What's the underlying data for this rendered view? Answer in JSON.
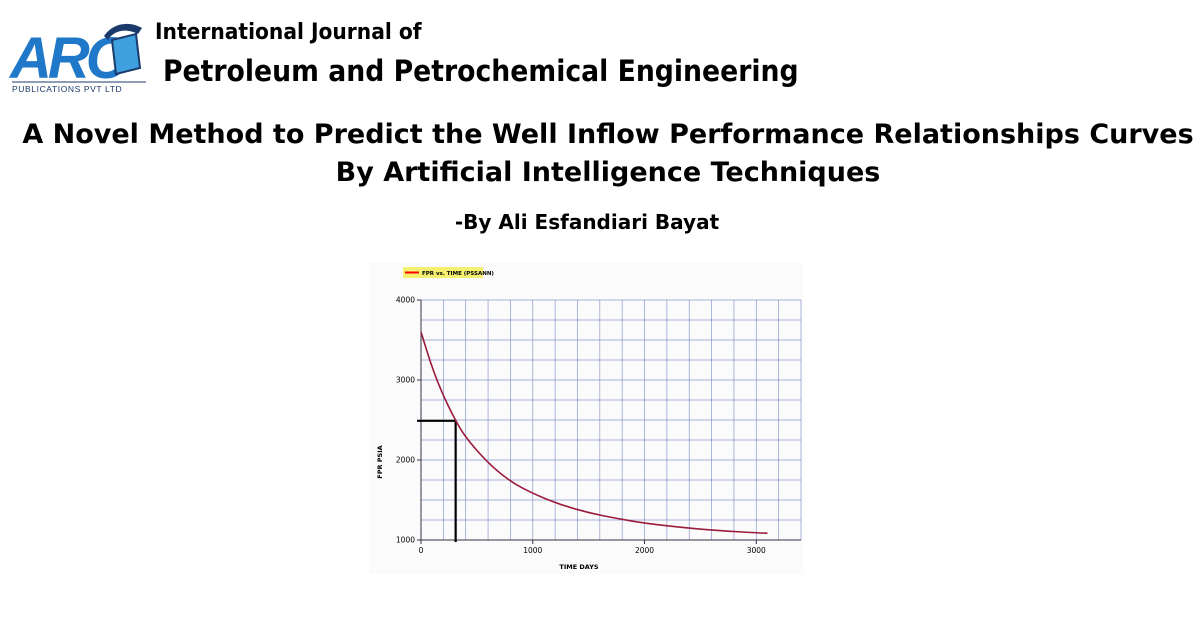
{
  "header": {
    "logo_letters": "ARC",
    "logo_tagline": "PUBLICATIONS PVT LTD",
    "journal_line1": "International Journal of",
    "journal_line2": "Petroleum and Petrochemical Engineering"
  },
  "paper": {
    "title": "A Novel Method to Predict the Well Inflow Performance Relationships Curves By Artificial Intelligence Techniques",
    "author": "-By Ali Esfandiari Bayat"
  },
  "colors": {
    "logo_blue": "#1f78c8",
    "logo_navy": "#1b3a6b",
    "curve": "#9b1b3c",
    "grid": "#6f7fc2",
    "legend_highlight": "#f5f070"
  },
  "chart_data": {
    "type": "line",
    "legend": "FPR vs. TIME (PSSANN)",
    "xlabel": "TIME  DAYS",
    "ylabel": "FPR  PSIA",
    "xlim": [
      0,
      3400
    ],
    "ylim": [
      1000,
      4000
    ],
    "x_ticks": [
      0,
      1000,
      2000,
      3000
    ],
    "y_ticks": [
      1000,
      2000,
      3000,
      4000
    ],
    "grid": true,
    "legend_position": "top-left",
    "series": [
      {
        "name": "FPR vs. TIME (PSSANN)",
        "x": [
          0,
          100,
          200,
          310,
          400,
          600,
          800,
          1000,
          1250,
          1500,
          1750,
          2000,
          2250,
          2500,
          2750,
          3000,
          3100
        ],
        "y": [
          3600,
          3150,
          2800,
          2490,
          2280,
          1960,
          1730,
          1580,
          1440,
          1340,
          1270,
          1210,
          1170,
          1135,
          1110,
          1090,
          1085
        ]
      }
    ],
    "annotation": {
      "x": 310,
      "y": 2490
    }
  }
}
